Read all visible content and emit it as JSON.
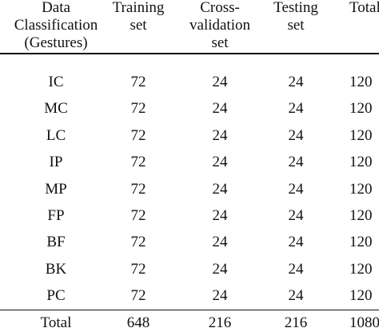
{
  "table": {
    "header": [
      [
        "Data",
        "Classification",
        "(Gestures)"
      ],
      [
        "Training",
        "set"
      ],
      [
        "Cross-",
        "validation",
        "set"
      ],
      [
        "Testing",
        "set"
      ],
      [
        "Total"
      ]
    ],
    "rows": [
      [
        "IC",
        72,
        24,
        24,
        120
      ],
      [
        "MC",
        72,
        24,
        24,
        120
      ],
      [
        "LC",
        72,
        24,
        24,
        120
      ],
      [
        "IP",
        72,
        24,
        24,
        120
      ],
      [
        "MP",
        72,
        24,
        24,
        120
      ],
      [
        "FP",
        72,
        24,
        24,
        120
      ],
      [
        "BF",
        72,
        24,
        24,
        120
      ],
      [
        "BK",
        72,
        24,
        24,
        120
      ],
      [
        "PC",
        72,
        24,
        24,
        120
      ],
      [
        "Total",
        648,
        216,
        216,
        1080
      ]
    ]
  }
}
